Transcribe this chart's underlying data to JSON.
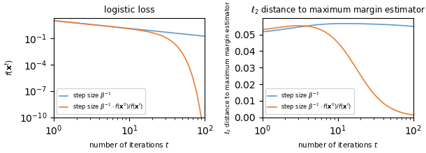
{
  "title_left": "logistic loss",
  "title_right": "$\\ell_2$ distance to maximum margin estimator",
  "xlabel": "number of iterations $t$",
  "ylabel_left": "$f(\\mathbf{x}^t)$",
  "ylabel_right": "$\\ell_2$ distance to maximum margin estimator",
  "x_min": 1,
  "x_max": 100,
  "color_blue": "#5b9bd5",
  "color_orange": "#ed7d31",
  "legend_label_1": "step size $\\beta^{-1}$",
  "legend_label_2": "step size $\\beta^{-1} \\cdot f(\\mathbf{x}^0)/f(\\mathbf{x}^t)$",
  "figsize": [
    6.1,
    2.2
  ],
  "dpi": 100
}
